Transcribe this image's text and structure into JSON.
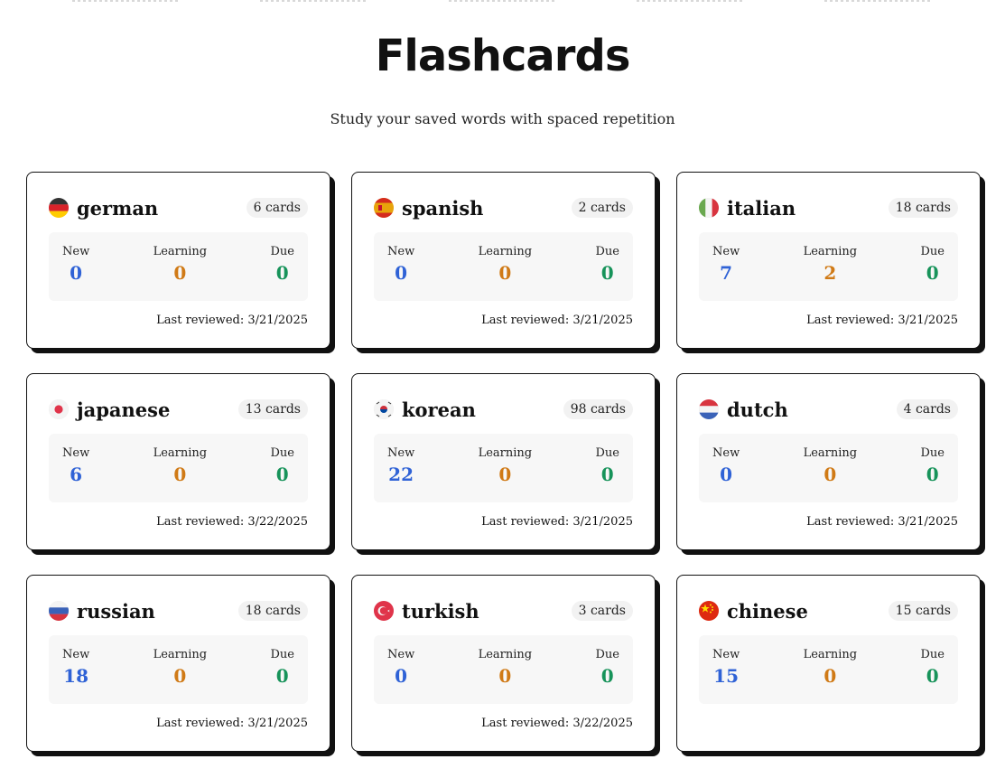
{
  "page": {
    "title": "Flashcards",
    "subtitle": "Study your saved words with spaced repetition"
  },
  "colors": {
    "new": "#2f62d6",
    "learning": "#d07a16",
    "due": "#17935a"
  },
  "labels": {
    "new": "New",
    "learning": "Learning",
    "due": "Due"
  },
  "decks": [
    {
      "language": "german",
      "flag_icon": "germany-flag-icon",
      "cards": "6 cards",
      "new": "0",
      "learning": "0",
      "due": "0",
      "last_reviewed": "Last reviewed: 3/21/2025"
    },
    {
      "language": "spanish",
      "flag_icon": "spain-flag-icon",
      "cards": "2 cards",
      "new": "0",
      "learning": "0",
      "due": "0",
      "last_reviewed": "Last reviewed: 3/21/2025"
    },
    {
      "language": "italian",
      "flag_icon": "italy-flag-icon",
      "cards": "18 cards",
      "new": "7",
      "learning": "2",
      "due": "0",
      "last_reviewed": "Last reviewed: 3/21/2025"
    },
    {
      "language": "japanese",
      "flag_icon": "japan-flag-icon",
      "cards": "13 cards",
      "new": "6",
      "learning": "0",
      "due": "0",
      "last_reviewed": "Last reviewed: 3/22/2025"
    },
    {
      "language": "korean",
      "flag_icon": "south-korea-flag-icon",
      "cards": "98 cards",
      "new": "22",
      "learning": "0",
      "due": "0",
      "last_reviewed": "Last reviewed: 3/21/2025"
    },
    {
      "language": "dutch",
      "flag_icon": "netherlands-flag-icon",
      "cards": "4 cards",
      "new": "0",
      "learning": "0",
      "due": "0",
      "last_reviewed": "Last reviewed: 3/21/2025"
    },
    {
      "language": "russian",
      "flag_icon": "russia-flag-icon",
      "cards": "18 cards",
      "new": "18",
      "learning": "0",
      "due": "0",
      "last_reviewed": "Last reviewed: 3/21/2025"
    },
    {
      "language": "turkish",
      "flag_icon": "turkey-flag-icon",
      "cards": "3 cards",
      "new": "0",
      "learning": "0",
      "due": "0",
      "last_reviewed": "Last reviewed: 3/22/2025"
    },
    {
      "language": "chinese",
      "flag_icon": "china-flag-icon",
      "cards": "15 cards",
      "new": "15",
      "learning": "0",
      "due": "0",
      "last_reviewed": ""
    }
  ]
}
